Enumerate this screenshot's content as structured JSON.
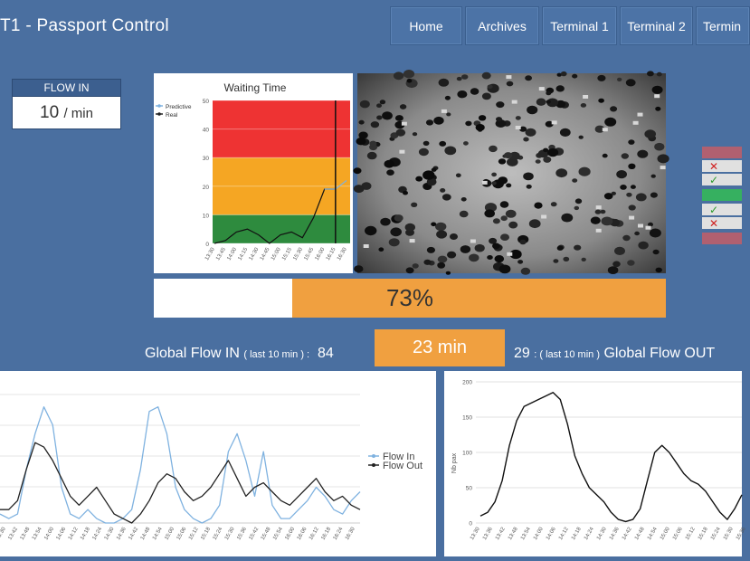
{
  "header": {
    "title": "T1 - Passport Control",
    "nav": [
      "Home",
      "Archives",
      "Terminal 1",
      "Terminal 2",
      "Termin"
    ]
  },
  "flow_in": {
    "label": "FLOW IN",
    "value": "10",
    "unit": "/ min"
  },
  "waiting_time_chart": {
    "title": "Waiting Time",
    "legend": [
      "Predictive",
      "Real"
    ],
    "y_ticks": [
      "50",
      "40",
      "30",
      "20",
      "10",
      "0"
    ],
    "x_ticks": [
      "13:30",
      "13:45",
      "14:00",
      "14:15",
      "14:30",
      "14:45",
      "15:00",
      "15:15",
      "15:30",
      "15:45",
      "16:00",
      "16:15",
      "16:30"
    ]
  },
  "occupancy": {
    "value": 0.73,
    "label": "73%"
  },
  "global_flow": {
    "in_label": "Global Flow IN",
    "in_period": "( last 10 min ) :",
    "in_value": "84",
    "wait_time": "23 min",
    "out_value": "29",
    "out_period": ": ( last 10 min )",
    "out_label": "Global Flow OUT"
  },
  "flow_chart": {
    "legend": [
      "Flow In",
      "Flow Out"
    ],
    "x_ticks": [
      "13:30",
      "13:42",
      "13:48",
      "13:54",
      "14:00",
      "14:06",
      "14:12",
      "14:18",
      "14:24",
      "14:30",
      "14:36",
      "14:42",
      "14:48",
      "14:54",
      "15:00",
      "15:06",
      "15:12",
      "15:18",
      "15:24",
      "15:30",
      "15:36",
      "15:42",
      "15:48",
      "15:54",
      "16:00",
      "16:06",
      "16:12",
      "16:18",
      "16:24",
      "16:30"
    ]
  },
  "pax_chart": {
    "y_label": "Nb pax",
    "y_ticks": [
      "200",
      "150",
      "100",
      "50",
      "0"
    ],
    "x_ticks": [
      "13:30",
      "13:36",
      "13:42",
      "13:48",
      "13:54",
      "14:00",
      "14:06",
      "14:12",
      "14:18",
      "14:24",
      "14:30",
      "14:36",
      "14:42",
      "14:48",
      "14:54",
      "15:00",
      "15:06",
      "15:12",
      "15:18",
      "15:24",
      "15:30",
      "15:36"
    ]
  },
  "colors": {
    "background": "#4a6fa0",
    "orange": "#f0a040",
    "red": "#ee3333",
    "yellow": "#f5a623",
    "green": "#2e8b3e",
    "flow_in_line": "#7fb2e0",
    "flow_out_line": "#222222"
  },
  "chart_data": [
    {
      "type": "line",
      "title": "Waiting Time",
      "ylim": [
        0,
        50
      ],
      "x": [
        "13:30",
        "13:45",
        "14:00",
        "14:15",
        "14:30",
        "14:45",
        "15:00",
        "15:15",
        "15:30",
        "15:45",
        "16:00",
        "16:15",
        "16:30"
      ],
      "series": [
        {
          "name": "Real",
          "values": [
            0,
            1,
            4,
            5,
            3,
            0,
            3,
            4,
            2,
            9,
            19,
            19,
            null
          ]
        },
        {
          "name": "Predictive",
          "values": [
            null,
            null,
            null,
            null,
            null,
            null,
            null,
            null,
            null,
            null,
            19,
            19,
            22
          ]
        }
      ],
      "bands": [
        {
          "from": 0,
          "to": 10,
          "color": "#2e8b3e"
        },
        {
          "from": 10,
          "to": 30,
          "color": "#f5a623"
        },
        {
          "from": 30,
          "to": 50,
          "color": "#ee3333"
        }
      ],
      "marker_x": "16:15"
    },
    {
      "type": "line",
      "series": [
        {
          "name": "Flow In",
          "values": [
            2,
            1,
            2,
            12,
            20,
            26,
            22,
            8,
            2,
            1,
            3,
            1,
            0,
            0,
            1,
            3,
            12,
            25,
            26,
            20,
            8,
            3,
            1,
            0,
            1,
            4,
            16,
            20,
            14,
            6,
            16,
            4,
            1,
            1,
            3,
            5,
            8,
            6,
            3,
            2,
            5,
            7
          ]
        },
        {
          "name": "Flow Out",
          "values": [
            3,
            3,
            5,
            12,
            18,
            17,
            14,
            10,
            6,
            4,
            6,
            8,
            5,
            2,
            1,
            0,
            2,
            5,
            9,
            11,
            10,
            7,
            5,
            6,
            8,
            11,
            14,
            10,
            6,
            8,
            9,
            7,
            5,
            4,
            6,
            8,
            10,
            7,
            5,
            6,
            4,
            3
          ]
        }
      ]
    },
    {
      "type": "line",
      "y_label": "Nb pax",
      "ylim": [
        0,
        200
      ],
      "series": [
        {
          "name": "Nb pax",
          "values": [
            10,
            15,
            30,
            60,
            110,
            145,
            165,
            170,
            175,
            180,
            185,
            175,
            140,
            95,
            70,
            50,
            40,
            30,
            15,
            5,
            2,
            5,
            20,
            60,
            100,
            110,
            100,
            85,
            70,
            60,
            55,
            45,
            30,
            15,
            5,
            20,
            40
          ]
        }
      ]
    }
  ]
}
